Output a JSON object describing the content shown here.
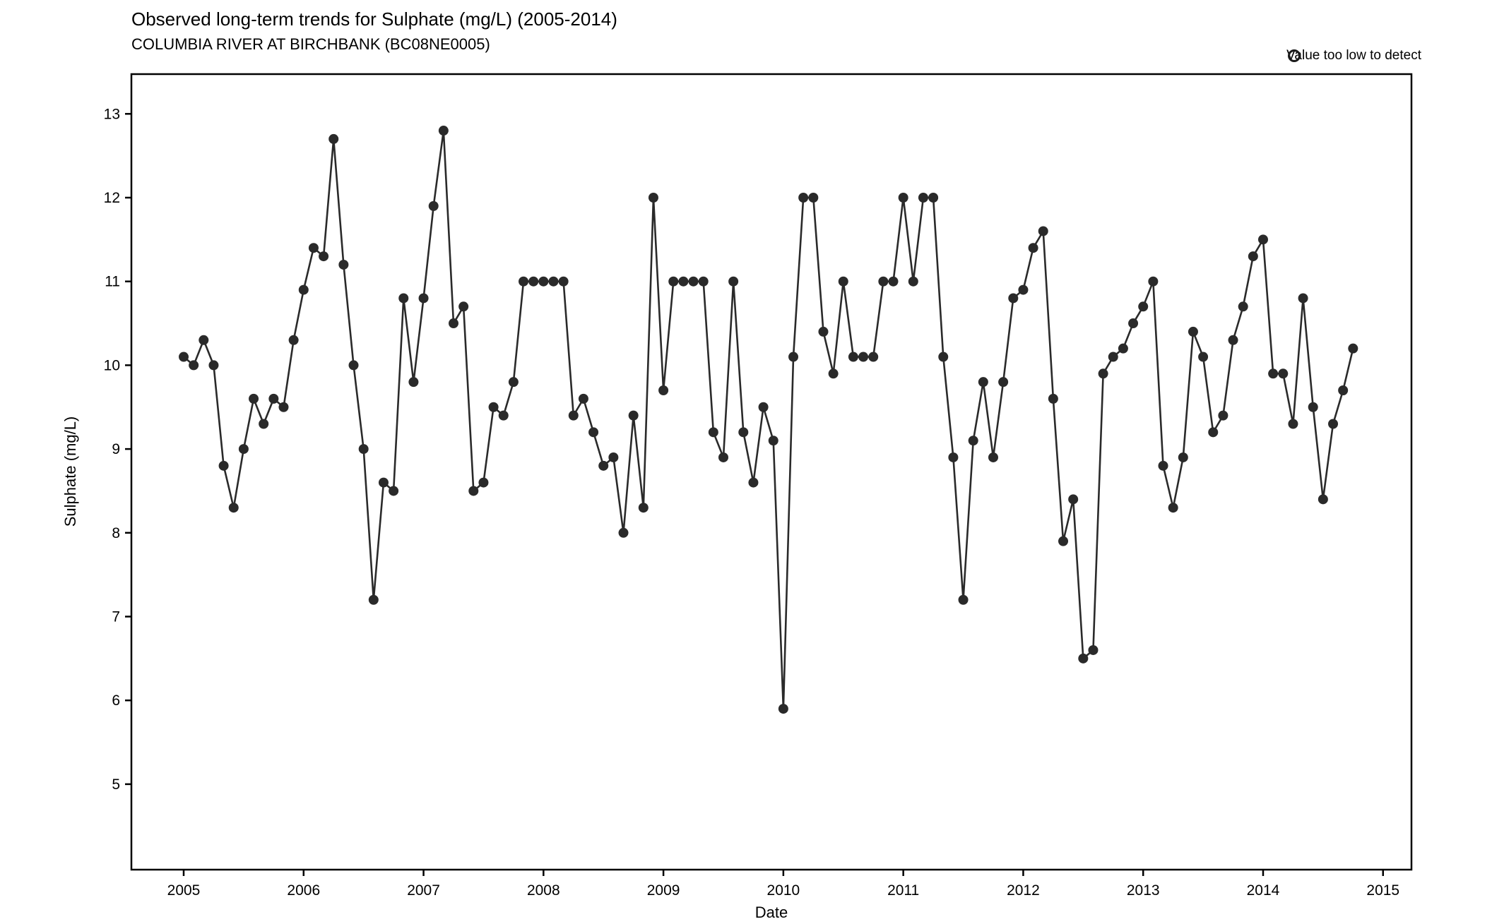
{
  "title": "Observed long-term trends for Sulphate (mg/L) (2005-2014)",
  "subtitle": "COLUMBIA RIVER AT BIRCHBANK (BC08NE0005)",
  "legend": {
    "label": "Value too low to detect"
  },
  "chart_data": {
    "type": "line",
    "title": "Observed long-term trends for Sulphate (mg/L) (2005-2014)",
    "subtitle": "COLUMBIA RIVER AT BIRCHBANK (BC08NE0005)",
    "xlabel": "Date",
    "ylabel": "Sulphate (mg/L)",
    "x_ticks": [
      2005,
      2006,
      2007,
      2008,
      2009,
      2010,
      2011,
      2012,
      2013,
      2014,
      2015
    ],
    "y_ticks": [
      5,
      6,
      7,
      8,
      9,
      10,
      11,
      12,
      13
    ],
    "ylim": [
      4.0,
      13.5
    ],
    "x_start_month": "2005-01",
    "x_end_month": "2014-10",
    "legend_entries": [
      "Value too low to detect"
    ],
    "legend_symbol": "open-circle",
    "grid": "off",
    "point_color": "#2a2a2a",
    "line_color": "#2a2a2a",
    "series": [
      {
        "name": "Sulphate (mg/L)",
        "monthly_values": [
          10.1,
          10.0,
          10.3,
          10.0,
          8.8,
          8.3,
          9.0,
          9.6,
          9.3,
          9.6,
          9.5,
          10.3,
          10.9,
          11.4,
          11.3,
          12.7,
          11.2,
          10.0,
          9.0,
          7.2,
          8.6,
          8.5,
          10.8,
          9.8,
          10.8,
          11.9,
          12.8,
          10.5,
          10.7,
          8.5,
          8.6,
          9.5,
          9.4,
          9.8,
          11.0,
          11.0,
          11.0,
          11.0,
          11.0,
          9.4,
          9.6,
          9.2,
          8.8,
          8.9,
          8.0,
          9.4,
          8.3,
          12.0,
          9.7,
          11.0,
          11.0,
          11.0,
          11.0,
          9.2,
          8.9,
          11.0,
          9.2,
          8.6,
          9.5,
          9.1,
          5.9,
          10.1,
          12.0,
          12.0,
          10.4,
          9.9,
          11.0,
          10.1,
          10.1,
          10.1,
          11.0,
          11.0,
          12.0,
          11.0,
          12.0,
          12.0,
          10.1,
          8.9,
          7.2,
          9.1,
          9.8,
          8.9,
          9.8,
          10.8,
          10.9,
          11.4,
          11.6,
          9.6,
          7.9,
          8.4,
          6.5,
          6.6,
          9.9,
          10.1,
          10.2,
          10.5,
          10.7,
          11.0,
          8.8,
          8.3,
          8.9,
          10.4,
          10.1,
          9.2,
          9.4,
          10.3,
          10.7,
          11.3,
          11.5,
          9.9,
          9.9,
          9.3,
          10.8,
          9.5,
          8.4,
          9.3,
          9.7,
          10.2
        ]
      }
    ]
  }
}
